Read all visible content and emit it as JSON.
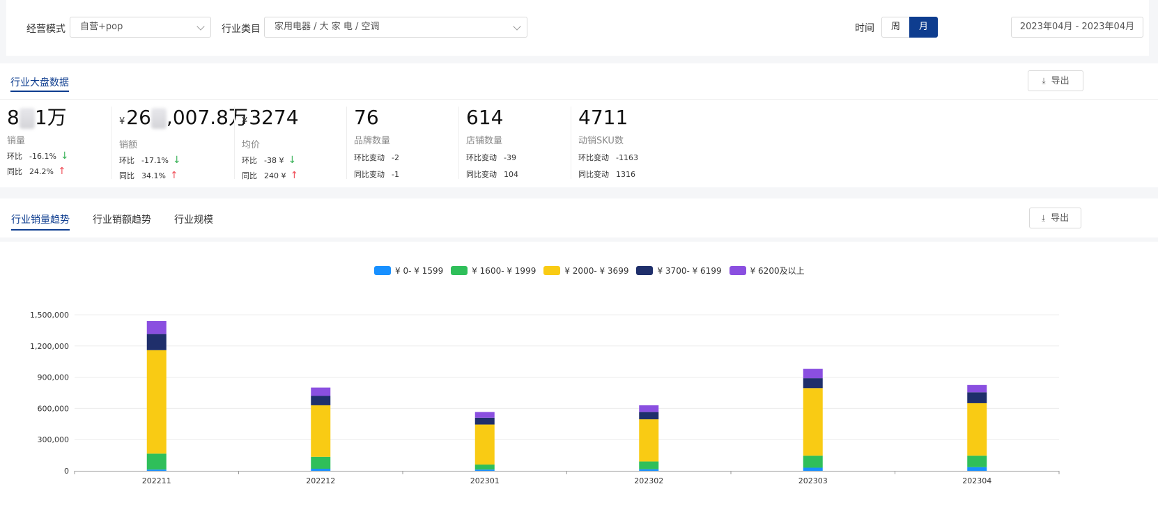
{
  "filters": {
    "mode_label": "经营模式",
    "mode_value": "自营+pop",
    "category_label": "行业类目",
    "category_value": "家用电器 / 大 家 电 / 空调",
    "time_label": "时间",
    "period_week": "周",
    "period_month": "月",
    "date_range": "2023年04月 - 2023年04月"
  },
  "overview": {
    "title": "行业大盘数据",
    "export_label": "导出",
    "stats": [
      {
        "prefix": "",
        "value_a": "8",
        "value_b": "1万",
        "label": "销量",
        "row1_label": "环比",
        "row1_value": "-16.1%",
        "row2_label": "同比",
        "row2_value": "24.2%"
      },
      {
        "prefix": "¥",
        "value_a": "26",
        "value_b": ",007.8万",
        "label": "销额",
        "row1_label": "环比",
        "row1_value": "-17.1%",
        "row2_label": "同比",
        "row2_value": "34.1%"
      },
      {
        "prefix": "¥",
        "value_a": "3274",
        "value_b": "",
        "label": "均价",
        "row1_label": "环比",
        "row1_value": "-38 ¥",
        "row2_label": "同比",
        "row2_value": "240 ¥"
      },
      {
        "prefix": "",
        "value_a": "76",
        "value_b": "",
        "label": "品牌数量",
        "row1_label": "环比变动",
        "row1_value": "-2",
        "row2_label": "同比变动",
        "row2_value": "-1"
      },
      {
        "prefix": "",
        "value_a": "614",
        "value_b": "",
        "label": "店铺数量",
        "row1_label": "环比变动",
        "row1_value": "-39",
        "row2_label": "同比变动",
        "row2_value": "104"
      },
      {
        "prefix": "",
        "value_a": "4711",
        "value_b": "",
        "label": "动销SKU数",
        "row1_label": "环比变动",
        "row1_value": "-1163",
        "row2_label": "同比变动",
        "row2_value": "1316"
      }
    ]
  },
  "trend_tabs": {
    "tab1": "行业销量趋势",
    "tab2": "行业销额趋势",
    "tab3": "行业规模",
    "export_label": "导出"
  },
  "colors": {
    "accent": "#0e3d8f",
    "up": "#f0505a",
    "down": "#3cb35a"
  },
  "chart_data": {
    "type": "bar",
    "stacked": true,
    "categories": [
      "202211",
      "202212",
      "202301",
      "202302",
      "202303",
      "202304"
    ],
    "ylim": [
      0,
      1500000
    ],
    "yticks": [
      "0",
      "300,000",
      "600,000",
      "900,000",
      "1,200,000",
      "1,500,000"
    ],
    "legend_position": "top",
    "series": [
      {
        "name": "¥ 0- ¥ 1599",
        "color": "#1890ff",
        "values": [
          12000,
          20000,
          12000,
          15000,
          30000,
          35000
        ]
      },
      {
        "name": "¥ 1600- ¥ 1999",
        "color": "#2fbf5a",
        "values": [
          153000,
          115000,
          48000,
          75000,
          115000,
          110000
        ]
      },
      {
        "name": "¥ 2000- ¥ 3699",
        "color": "#f9cb14",
        "values": [
          995000,
          495000,
          385000,
          405000,
          650000,
          505000
        ]
      },
      {
        "name": "¥ 3700- ¥ 6199",
        "color": "#1f2f6b",
        "values": [
          155000,
          90000,
          65000,
          70000,
          95000,
          105000
        ]
      },
      {
        "name": "¥ 6200及以上",
        "color": "#8a4fe0",
        "values": [
          125000,
          80000,
          55000,
          65000,
          90000,
          70000
        ]
      }
    ]
  }
}
